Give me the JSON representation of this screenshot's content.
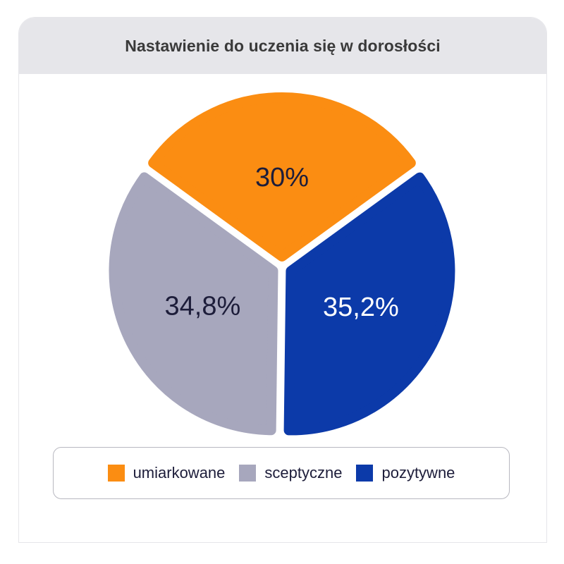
{
  "chart_data": {
    "type": "pie",
    "title": "Nastawienie do uczenia się w dorosłości",
    "slices": [
      {
        "name": "umiarkowane",
        "value": 30,
        "label": "30%",
        "color": "#fb8d12",
        "label_color": "#1d1d3a"
      },
      {
        "name": "pozytywne",
        "value": 35.2,
        "label": "35,2%",
        "color": "#0c3aa9",
        "label_color": "#ffffff"
      },
      {
        "name": "sceptyczne",
        "value": 34.8,
        "label": "34,8%",
        "color": "#a7a7bd",
        "label_color": "#1d1d3a"
      }
    ],
    "legend": {
      "placement": "bottom",
      "items": [
        {
          "label": "umiarkowane",
          "color": "#fb8d12"
        },
        {
          "label": "sceptyczne",
          "color": "#a7a7bd"
        },
        {
          "label": "pozytywne",
          "color": "#0c3aa9"
        }
      ]
    }
  }
}
